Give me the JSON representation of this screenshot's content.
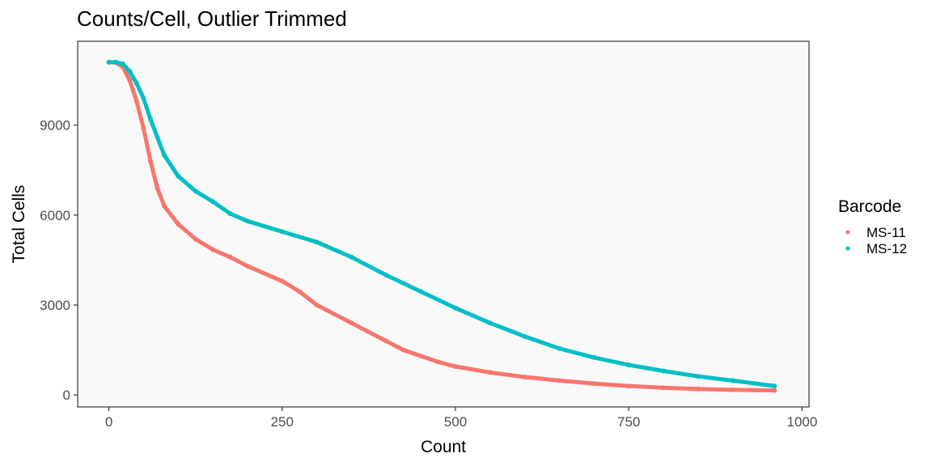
{
  "chart_data": {
    "type": "scatter",
    "title": "Counts/Cell, Outlier Trimmed",
    "xlabel": "Count",
    "ylabel": "Total Cells",
    "xlim": [
      -45,
      1010
    ],
    "ylim": [
      -400,
      11800
    ],
    "x_ticks": [
      0,
      250,
      500,
      750,
      1000
    ],
    "y_ticks": [
      0,
      3000,
      6000,
      9000
    ],
    "x_tick_labels": [
      "0",
      "250",
      "500",
      "750",
      "1000"
    ],
    "y_tick_labels": [
      "0",
      "3000",
      "6000",
      "9000"
    ],
    "grid": false,
    "panel_background": "#f9f9f9",
    "legend": {
      "title": "Barcode",
      "position": "right"
    },
    "series": [
      {
        "name": "MS-11",
        "color": "#f8766d",
        "points": [
          [
            0,
            11100
          ],
          [
            10,
            11090
          ],
          [
            20,
            10950
          ],
          [
            30,
            10500
          ],
          [
            40,
            9800
          ],
          [
            50,
            8900
          ],
          [
            60,
            7800
          ],
          [
            70,
            6900
          ],
          [
            80,
            6300
          ],
          [
            100,
            5700
          ],
          [
            125,
            5200
          ],
          [
            150,
            4850
          ],
          [
            175,
            4600
          ],
          [
            200,
            4300
          ],
          [
            250,
            3800
          ],
          [
            275,
            3450
          ],
          [
            300,
            3000
          ],
          [
            350,
            2400
          ],
          [
            400,
            1800
          ],
          [
            425,
            1500
          ],
          [
            450,
            1300
          ],
          [
            475,
            1100
          ],
          [
            500,
            950
          ],
          [
            550,
            750
          ],
          [
            600,
            600
          ],
          [
            650,
            480
          ],
          [
            700,
            380
          ],
          [
            750,
            300
          ],
          [
            800,
            240
          ],
          [
            850,
            200
          ],
          [
            900,
            170
          ],
          [
            960,
            150
          ]
        ]
      },
      {
        "name": "MS-12",
        "color": "#00bfc4",
        "points": [
          [
            0,
            11100
          ],
          [
            10,
            11100
          ],
          [
            20,
            11050
          ],
          [
            30,
            10800
          ],
          [
            40,
            10400
          ],
          [
            50,
            9900
          ],
          [
            60,
            9200
          ],
          [
            70,
            8600
          ],
          [
            80,
            8000
          ],
          [
            100,
            7300
          ],
          [
            125,
            6800
          ],
          [
            150,
            6450
          ],
          [
            175,
            6050
          ],
          [
            200,
            5800
          ],
          [
            250,
            5450
          ],
          [
            300,
            5100
          ],
          [
            350,
            4600
          ],
          [
            400,
            4000
          ],
          [
            450,
            3450
          ],
          [
            500,
            2900
          ],
          [
            550,
            2400
          ],
          [
            600,
            1950
          ],
          [
            650,
            1550
          ],
          [
            700,
            1250
          ],
          [
            750,
            1000
          ],
          [
            800,
            800
          ],
          [
            850,
            620
          ],
          [
            900,
            480
          ],
          [
            960,
            300
          ]
        ]
      }
    ]
  }
}
